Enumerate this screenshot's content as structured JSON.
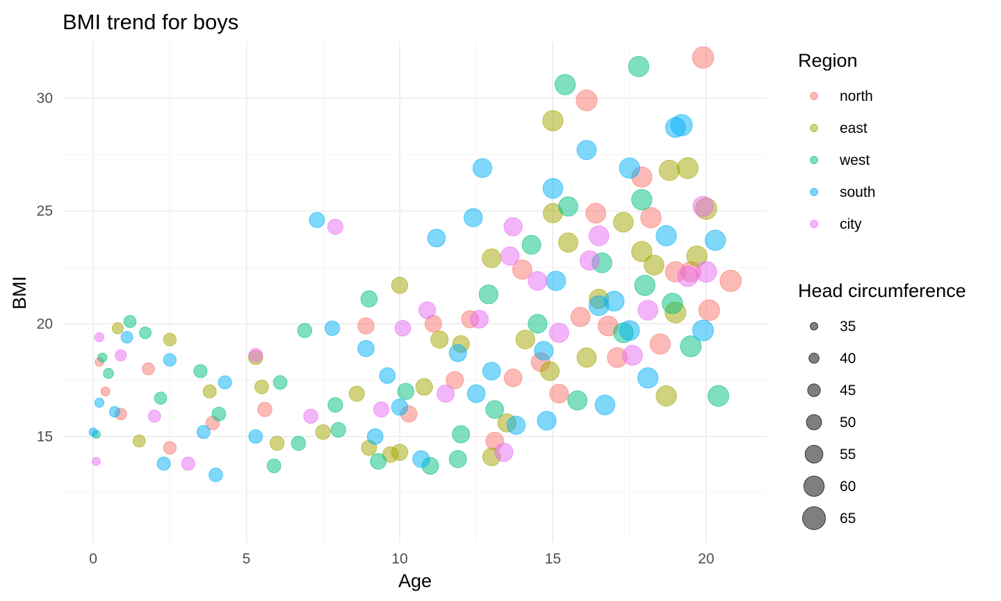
{
  "colors": {
    "north": "#F8766D",
    "east": "#A3A500",
    "west": "#00BF7D",
    "south": "#00B0F6",
    "city": "#E76BF3",
    "size_legend": "#000000"
  },
  "chart_data": {
    "type": "scatter",
    "title": "BMI trend for boys",
    "xlabel": "Age",
    "ylabel": "BMI",
    "xlim": [
      -1,
      22
    ],
    "ylim": [
      10.3,
      32.5
    ],
    "x_ticks": [
      0,
      5,
      10,
      15,
      20
    ],
    "y_ticks": [
      15,
      20,
      25,
      30
    ],
    "grid": true,
    "legend_placement": "right",
    "color_legend": {
      "title": "Region",
      "entries": [
        "north",
        "east",
        "west",
        "south",
        "city"
      ]
    },
    "size_legend": {
      "title": "Head circumference",
      "entries": [
        35,
        40,
        45,
        50,
        55,
        60,
        65
      ]
    },
    "size_range": [
      35,
      65
    ],
    "series": [
      {
        "name": "north",
        "points": [
          [
            19.9,
            31.8,
            62
          ],
          [
            16.1,
            29.9,
            61
          ],
          [
            17.9,
            26.5,
            60
          ],
          [
            16.4,
            24.9,
            59
          ],
          [
            20.8,
            21.9,
            62
          ],
          [
            19.5,
            22.3,
            60
          ],
          [
            18.2,
            24.7,
            60
          ],
          [
            14.0,
            22.4,
            58
          ],
          [
            20.1,
            20.6,
            61
          ],
          [
            15.9,
            20.3,
            58
          ],
          [
            17.1,
            18.5,
            59
          ],
          [
            19.0,
            22.3,
            60
          ],
          [
            8.9,
            19.9,
            52
          ],
          [
            11.1,
            20.0,
            53
          ],
          [
            13.7,
            17.6,
            55
          ],
          [
            5.6,
            16.2,
            48
          ],
          [
            2.5,
            14.5,
            45
          ],
          [
            1.8,
            18.0,
            44
          ],
          [
            0.4,
            17.0,
            38
          ],
          [
            0.9,
            16.0,
            43
          ],
          [
            12.3,
            20.2,
            54
          ],
          [
            15.2,
            16.9,
            57
          ],
          [
            18.5,
            19.1,
            60
          ],
          [
            14.6,
            18.3,
            57
          ],
          [
            3.9,
            15.6,
            47
          ],
          [
            0.2,
            18.3,
            37
          ],
          [
            11.8,
            17.5,
            54
          ],
          [
            13.1,
            14.8,
            55
          ],
          [
            16.8,
            19.9,
            59
          ],
          [
            10.3,
            16.0,
            52
          ]
        ]
      },
      {
        "name": "east",
        "points": [
          [
            15.0,
            29.0,
            60
          ],
          [
            19.4,
            26.9,
            61
          ],
          [
            18.8,
            26.8,
            60
          ],
          [
            15.0,
            24.9,
            58
          ],
          [
            20.0,
            25.1,
            62
          ],
          [
            17.3,
            24.5,
            59
          ],
          [
            15.5,
            23.6,
            58
          ],
          [
            13.0,
            22.9,
            57
          ],
          [
            10.0,
            21.7,
            52
          ],
          [
            19.0,
            20.5,
            61
          ],
          [
            18.7,
            16.8,
            60
          ],
          [
            13.0,
            14.1,
            55
          ],
          [
            5.3,
            18.5,
            48
          ],
          [
            2.5,
            19.3,
            45
          ],
          [
            0.8,
            19.8,
            42
          ],
          [
            5.5,
            17.2,
            47
          ],
          [
            7.5,
            15.2,
            49
          ],
          [
            9.0,
            14.5,
            50
          ],
          [
            9.7,
            14.2,
            51
          ],
          [
            10.0,
            14.3,
            52
          ],
          [
            11.3,
            19.3,
            54
          ],
          [
            12.0,
            19.1,
            53
          ],
          [
            13.5,
            15.6,
            56
          ],
          [
            14.1,
            19.3,
            57
          ],
          [
            16.5,
            21.1,
            58
          ],
          [
            17.9,
            23.2,
            60
          ],
          [
            19.7,
            23.0,
            60
          ],
          [
            3.8,
            17.0,
            46
          ],
          [
            1.5,
            14.8,
            44
          ],
          [
            6.0,
            14.7,
            48
          ],
          [
            10.8,
            17.2,
            53
          ],
          [
            14.9,
            17.9,
            57
          ],
          [
            16.1,
            18.5,
            58
          ],
          [
            18.3,
            22.6,
            59
          ],
          [
            8.6,
            16.9,
            50
          ]
        ]
      },
      {
        "name": "west",
        "points": [
          [
            17.8,
            31.4,
            60
          ],
          [
            15.4,
            30.6,
            60
          ],
          [
            20.4,
            16.8,
            61
          ],
          [
            17.9,
            25.5,
            60
          ],
          [
            15.5,
            25.2,
            58
          ],
          [
            14.3,
            23.5,
            57
          ],
          [
            12.9,
            21.3,
            57
          ],
          [
            9.0,
            21.1,
            52
          ],
          [
            6.9,
            19.7,
            48
          ],
          [
            1.2,
            20.1,
            44
          ],
          [
            1.7,
            19.6,
            43
          ],
          [
            6.1,
            17.4,
            47
          ],
          [
            5.9,
            13.7,
            47
          ],
          [
            6.7,
            14.7,
            48
          ],
          [
            11.0,
            13.7,
            53
          ],
          [
            11.9,
            14.0,
            54
          ],
          [
            18.0,
            21.7,
            60
          ],
          [
            19.5,
            19.0,
            61
          ],
          [
            16.6,
            22.7,
            59
          ],
          [
            14.5,
            20.0,
            57
          ],
          [
            13.1,
            16.2,
            55
          ],
          [
            9.3,
            13.9,
            51
          ],
          [
            7.9,
            16.4,
            49
          ],
          [
            3.5,
            17.9,
            46
          ],
          [
            0.3,
            18.5,
            38
          ],
          [
            0.1,
            15.1,
            36
          ],
          [
            2.2,
            16.7,
            44
          ],
          [
            15.8,
            16.6,
            58
          ],
          [
            17.3,
            19.6,
            59
          ],
          [
            18.9,
            20.9,
            60
          ],
          [
            12.0,
            15.1,
            54
          ],
          [
            10.2,
            17.0,
            52
          ],
          [
            8.0,
            15.3,
            49
          ],
          [
            0.5,
            17.8,
            40
          ],
          [
            4.1,
            16.0,
            47
          ]
        ]
      },
      {
        "name": "south",
        "points": [
          [
            19.2,
            28.8,
            62
          ],
          [
            19.0,
            28.7,
            59
          ],
          [
            16.1,
            27.7,
            58
          ],
          [
            12.7,
            26.9,
            57
          ],
          [
            17.5,
            26.9,
            60
          ],
          [
            15.0,
            26.0,
            59
          ],
          [
            12.4,
            24.7,
            56
          ],
          [
            7.3,
            24.6,
            50
          ],
          [
            11.2,
            23.8,
            55
          ],
          [
            7.8,
            19.8,
            49
          ],
          [
            4.0,
            13.3,
            47
          ],
          [
            2.3,
            13.8,
            46
          ],
          [
            4.3,
            17.4,
            46
          ],
          [
            8.9,
            18.9,
            52
          ],
          [
            9.2,
            15.0,
            51
          ],
          [
            10.7,
            14.0,
            53
          ],
          [
            13.8,
            15.5,
            56
          ],
          [
            14.8,
            15.7,
            57
          ],
          [
            16.7,
            16.4,
            59
          ],
          [
            17.5,
            19.7,
            59
          ],
          [
            18.1,
            17.6,
            60
          ],
          [
            19.9,
            19.7,
            61
          ],
          [
            20.3,
            23.7,
            60
          ],
          [
            15.1,
            21.9,
            58
          ],
          [
            16.5,
            20.8,
            59
          ],
          [
            13.0,
            17.9,
            55
          ],
          [
            11.9,
            18.7,
            54
          ],
          [
            10.0,
            16.3,
            52
          ],
          [
            0.0,
            15.2,
            36
          ],
          [
            0.7,
            16.1,
            41
          ],
          [
            1.1,
            19.4,
            43
          ],
          [
            2.5,
            18.4,
            45
          ],
          [
            3.6,
            15.2,
            46
          ],
          [
            5.3,
            15.0,
            47
          ],
          [
            14.7,
            18.8,
            57
          ],
          [
            17.0,
            21.0,
            59
          ],
          [
            18.7,
            23.9,
            60
          ],
          [
            9.6,
            17.7,
            51
          ],
          [
            12.5,
            16.9,
            55
          ],
          [
            0.2,
            16.5,
            38
          ]
        ]
      },
      {
        "name": "city",
        "points": [
          [
            7.9,
            24.3,
            50
          ],
          [
            13.7,
            24.3,
            56
          ],
          [
            19.9,
            25.2,
            60
          ],
          [
            16.5,
            23.9,
            59
          ],
          [
            13.6,
            23.0,
            56
          ],
          [
            10.9,
            20.6,
            53
          ],
          [
            12.6,
            20.2,
            55
          ],
          [
            10.1,
            19.8,
            51
          ],
          [
            5.3,
            18.6,
            47
          ],
          [
            3.1,
            13.8,
            46
          ],
          [
            7.1,
            15.9,
            48
          ],
          [
            13.4,
            14.3,
            56
          ],
          [
            14.5,
            21.9,
            57
          ],
          [
            16.2,
            22.8,
            58
          ],
          [
            18.1,
            20.6,
            59
          ],
          [
            19.4,
            22.1,
            60
          ],
          [
            20.0,
            22.3,
            61
          ],
          [
            0.2,
            19.4,
            38
          ],
          [
            0.9,
            18.6,
            42
          ],
          [
            2.0,
            15.9,
            44
          ],
          [
            11.5,
            16.9,
            54
          ],
          [
            15.2,
            19.6,
            58
          ],
          [
            17.6,
            18.6,
            59
          ],
          [
            9.4,
            16.2,
            50
          ],
          [
            0.1,
            13.9,
            36
          ]
        ]
      }
    ]
  }
}
